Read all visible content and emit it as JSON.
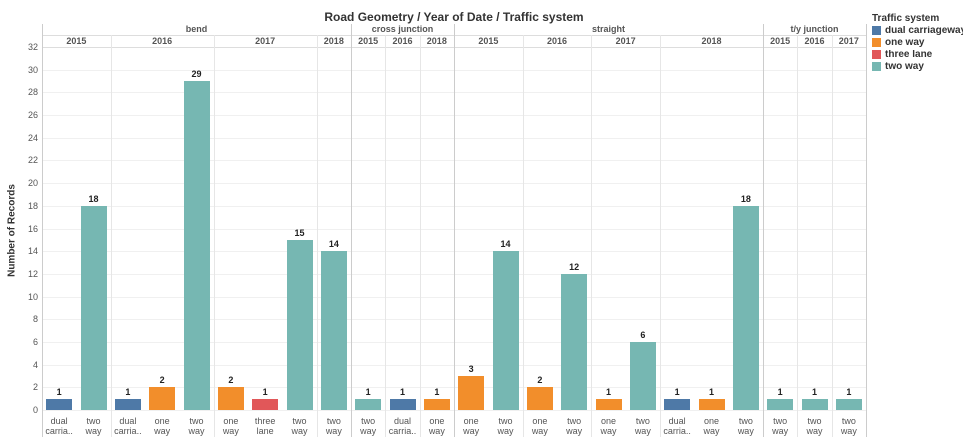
{
  "chart_data": {
    "type": "bar",
    "title": "Road Geometry  /  Year of Date  /  Traffic system",
    "y_label": "Number of Records",
    "ylim": [
      0,
      32
    ],
    "yticks": [
      0,
      2,
      4,
      6,
      8,
      10,
      12,
      14,
      16,
      18,
      20,
      22,
      24,
      26,
      28,
      30,
      32
    ],
    "grid": true,
    "legend": {
      "title": "Traffic system",
      "position": "right",
      "items": [
        {
          "name": "dual carriageway",
          "color": "#4e79a7"
        },
        {
          "name": "one way",
          "color": "#f28e2b"
        },
        {
          "name": "three lane",
          "color": "#e15759"
        },
        {
          "name": "two way",
          "color": "#76b7b2"
        }
      ]
    },
    "panels": [
      {
        "name": "bend",
        "years": [
          {
            "name": "2015",
            "categories": [
              "dual carria..",
              "two way"
            ],
            "system": [
              "dual carriageway",
              "two way"
            ],
            "values": [
              1,
              18
            ]
          },
          {
            "name": "2016",
            "categories": [
              "dual carria..",
              "one way",
              "two way"
            ],
            "system": [
              "dual carriageway",
              "one way",
              "two way"
            ],
            "values": [
              1,
              2,
              29
            ]
          },
          {
            "name": "2017",
            "categories": [
              "one way",
              "three lane",
              "two way"
            ],
            "system": [
              "one way",
              "three lane",
              "two way"
            ],
            "values": [
              2,
              1,
              15
            ]
          },
          {
            "name": "2018",
            "categories": [
              "two way"
            ],
            "system": [
              "two way"
            ],
            "values": [
              14
            ]
          }
        ]
      },
      {
        "name": "cross junction",
        "years": [
          {
            "name": "2015",
            "categories": [
              "two way"
            ],
            "system": [
              "two way"
            ],
            "values": [
              1
            ]
          },
          {
            "name": "2016",
            "categories": [
              "dual carria.."
            ],
            "system": [
              "dual carriageway"
            ],
            "values": [
              1
            ]
          },
          {
            "name": "2018",
            "categories": [
              "one way"
            ],
            "system": [
              "one way"
            ],
            "values": [
              1
            ]
          }
        ]
      },
      {
        "name": "straight",
        "years": [
          {
            "name": "2015",
            "categories": [
              "one way",
              "two way"
            ],
            "system": [
              "one way",
              "two way"
            ],
            "values": [
              3,
              14
            ]
          },
          {
            "name": "2016",
            "categories": [
              "one way",
              "two way"
            ],
            "system": [
              "one way",
              "two way"
            ],
            "values": [
              2,
              12
            ]
          },
          {
            "name": "2017",
            "categories": [
              "one way",
              "two way"
            ],
            "system": [
              "one way",
              "two way"
            ],
            "values": [
              1,
              6
            ]
          },
          {
            "name": "2018",
            "categories": [
              "dual carria..",
              "one way",
              "two way"
            ],
            "system": [
              "dual carriageway",
              "one way",
              "two way"
            ],
            "values": [
              1,
              1,
              18
            ]
          }
        ]
      },
      {
        "name": "t/y junction",
        "years": [
          {
            "name": "2015",
            "categories": [
              "two way"
            ],
            "system": [
              "two way"
            ],
            "values": [
              1
            ]
          },
          {
            "name": "2016",
            "categories": [
              "two way"
            ],
            "system": [
              "two way"
            ],
            "values": [
              1
            ]
          },
          {
            "name": "2017",
            "categories": [
              "two way"
            ],
            "system": [
              "two way"
            ],
            "values": [
              1
            ]
          }
        ]
      }
    ]
  }
}
